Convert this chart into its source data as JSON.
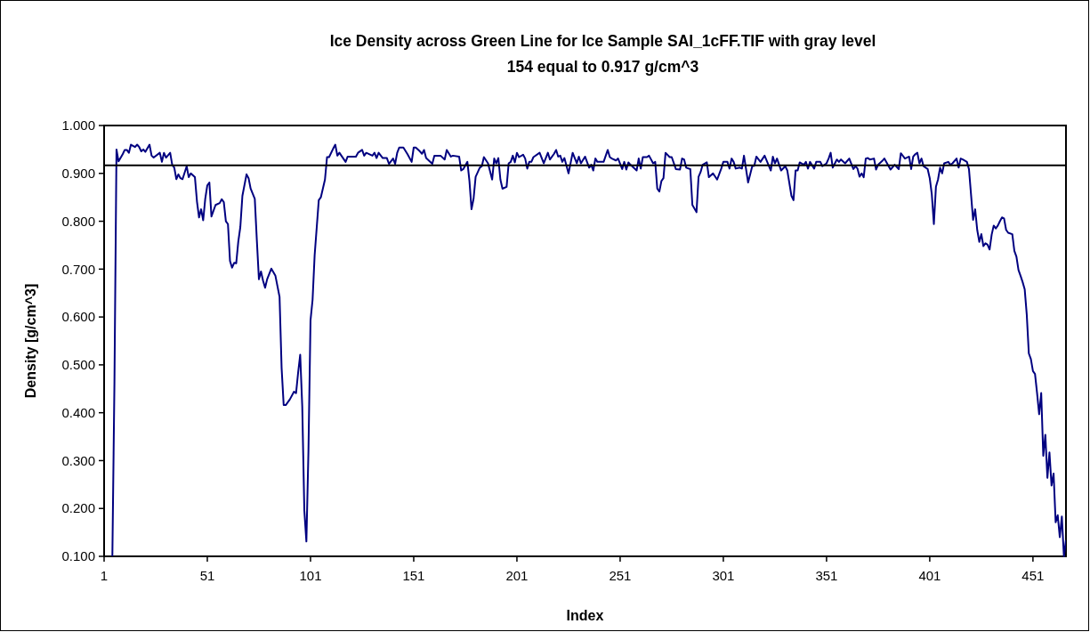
{
  "chart_data": {
    "type": "line",
    "title": "Ice Density across Green Line for Ice Sample SAI_1cFF.TIF with gray level\n154 equal to 0.917 g/cm^3",
    "xlabel": "Index",
    "ylabel": "Density [g/cm^3]",
    "xlim": [
      1,
      467
    ],
    "xticks": [
      1,
      51,
      101,
      151,
      201,
      251,
      301,
      351,
      401,
      451
    ],
    "ylim": [
      0.1,
      1.0
    ],
    "yticks": [
      {
        "value": 0.1,
        "label": "0.100"
      },
      {
        "value": 0.2,
        "label": "0.200"
      },
      {
        "value": 0.3,
        "label": "0.300"
      },
      {
        "value": 0.4,
        "label": "0.400"
      },
      {
        "value": 0.5,
        "label": "0.500"
      },
      {
        "value": 0.6,
        "label": "0.600"
      },
      {
        "value": 0.7,
        "label": "0.700"
      },
      {
        "value": 0.8,
        "label": "0.800"
      },
      {
        "value": 0.9,
        "label": "0.900"
      },
      {
        "value": 1.0,
        "label": "1.000"
      }
    ],
    "grid": false,
    "marker": "none",
    "line_style": "solid",
    "ref_lines": [
      {
        "axis": "y",
        "value": 0.917,
        "color": "#000000"
      }
    ],
    "series": [
      {
        "color": "#000080",
        "x": [
          5,
          6,
          7,
          8,
          10,
          11,
          12,
          13,
          14,
          16,
          17,
          18,
          19,
          20,
          21,
          23,
          24,
          25,
          28,
          29,
          30,
          31,
          33,
          34,
          35,
          36,
          37,
          38,
          39,
          41,
          42,
          43,
          45,
          46,
          47,
          48,
          49,
          50,
          51,
          52,
          53,
          55,
          57,
          58,
          59,
          60,
          61,
          62,
          63,
          64,
          65,
          66,
          67,
          68,
          70,
          71,
          72,
          74,
          75,
          76,
          77,
          78,
          79,
          80,
          82,
          84,
          86,
          87,
          88,
          89,
          91,
          93,
          94,
          95,
          96,
          97,
          98,
          99,
          100,
          101,
          102,
          103,
          105,
          106,
          108,
          109,
          110,
          112,
          113,
          114,
          115,
          118,
          119,
          123,
          124,
          126,
          127,
          128,
          131,
          132,
          133,
          134,
          136,
          138,
          139,
          141,
          142,
          143,
          144,
          146,
          148,
          150,
          151,
          152,
          154,
          155,
          156,
          157,
          160,
          161,
          164,
          166,
          167,
          169,
          170,
          173,
          174,
          175,
          177,
          178,
          179,
          180,
          181,
          183,
          184,
          185,
          187,
          189,
          190,
          191,
          192,
          193,
          194,
          196,
          197,
          198,
          199,
          200,
          201,
          202,
          204,
          205,
          206,
          207,
          208,
          209,
          212,
          214,
          216,
          217,
          219,
          220,
          221,
          222,
          223,
          224,
          226,
          228,
          230,
          231,
          232,
          234,
          236,
          237,
          238,
          239,
          240,
          243,
          245,
          246,
          247,
          249,
          250,
          252,
          253,
          254,
          255,
          256,
          259,
          260,
          261,
          262,
          264,
          265,
          267,
          268,
          269,
          270,
          271,
          272,
          273,
          275,
          276,
          278,
          280,
          281,
          282,
          283,
          285,
          286,
          288,
          289,
          290,
          291,
          293,
          294,
          296,
          298,
          300,
          301,
          303,
          304,
          305,
          306,
          307,
          309,
          310,
          311,
          313,
          315,
          316,
          317,
          319,
          321,
          324,
          325,
          326,
          327,
          329,
          331,
          332,
          334,
          335,
          336,
          337,
          338,
          340,
          341,
          342,
          343,
          345,
          346,
          348,
          349,
          351,
          352,
          353,
          354,
          356,
          357,
          358,
          360,
          362,
          364,
          365,
          366,
          367,
          368,
          369,
          370,
          371,
          372,
          374,
          375,
          376,
          378,
          379,
          382,
          384,
          386,
          387,
          389,
          391,
          392,
          393,
          394,
          395,
          396,
          397,
          398,
          400,
          401,
          402,
          403,
          404,
          405,
          406,
          407,
          408,
          410,
          411,
          412,
          414,
          415,
          416,
          417,
          419,
          420,
          421,
          422,
          423,
          424,
          425,
          426,
          427,
          428,
          429,
          430,
          431,
          432,
          433,
          434,
          435,
          436,
          437,
          438,
          439,
          441,
          442,
          443,
          444,
          445,
          446,
          447,
          448,
          449,
          450,
          451,
          452,
          453,
          454,
          455,
          456,
          457,
          458,
          459,
          460,
          461,
          462,
          463,
          464,
          465,
          466,
          467
        ],
        "values": [
          0.1,
          0.46,
          0.95,
          0.925,
          0.94,
          0.949,
          0.949,
          0.943,
          0.96,
          0.955,
          0.96,
          0.955,
          0.946,
          0.95,
          0.945,
          0.96,
          0.937,
          0.933,
          0.943,
          0.924,
          0.943,
          0.933,
          0.943,
          0.918,
          0.912,
          0.888,
          0.898,
          0.89,
          0.888,
          0.915,
          0.892,
          0.9,
          0.892,
          0.841,
          0.808,
          0.825,
          0.802,
          0.847,
          0.875,
          0.881,
          0.81,
          0.834,
          0.838,
          0.846,
          0.84,
          0.8,
          0.794,
          0.717,
          0.703,
          0.713,
          0.712,
          0.757,
          0.788,
          0.853,
          0.898,
          0.89,
          0.868,
          0.847,
          0.76,
          0.679,
          0.695,
          0.676,
          0.661,
          0.679,
          0.701,
          0.686,
          0.642,
          0.493,
          0.416,
          0.416,
          0.428,
          0.444,
          0.441,
          0.484,
          0.521,
          0.413,
          0.196,
          0.131,
          0.32,
          0.593,
          0.636,
          0.729,
          0.844,
          0.85,
          0.887,
          0.934,
          0.934,
          0.952,
          0.96,
          0.937,
          0.943,
          0.924,
          0.935,
          0.935,
          0.943,
          0.949,
          0.937,
          0.943,
          0.937,
          0.943,
          0.932,
          0.943,
          0.932,
          0.932,
          0.92,
          0.931,
          0.92,
          0.943,
          0.954,
          0.954,
          0.94,
          0.924,
          0.954,
          0.954,
          0.946,
          0.941,
          0.949,
          0.932,
          0.92,
          0.937,
          0.937,
          0.929,
          0.949,
          0.935,
          0.937,
          0.935,
          0.906,
          0.909,
          0.924,
          0.884,
          0.825,
          0.847,
          0.893,
          0.912,
          0.915,
          0.934,
          0.921,
          0.887,
          0.931,
          0.921,
          0.932,
          0.887,
          0.868,
          0.872,
          0.921,
          0.924,
          0.937,
          0.923,
          0.943,
          0.934,
          0.939,
          0.931,
          0.91,
          0.924,
          0.924,
          0.934,
          0.943,
          0.921,
          0.943,
          0.929,
          0.941,
          0.949,
          0.935,
          0.937,
          0.924,
          0.932,
          0.9,
          0.943,
          0.921,
          0.935,
          0.921,
          0.935,
          0.912,
          0.918,
          0.906,
          0.931,
          0.924,
          0.924,
          0.949,
          0.934,
          0.931,
          0.927,
          0.931,
          0.909,
          0.924,
          0.908,
          0.923,
          0.918,
          0.906,
          0.931,
          0.91,
          0.934,
          0.934,
          0.937,
          0.921,
          0.924,
          0.868,
          0.862,
          0.884,
          0.89,
          0.943,
          0.934,
          0.934,
          0.909,
          0.908,
          0.931,
          0.929,
          0.912,
          0.909,
          0.834,
          0.819,
          0.893,
          0.903,
          0.918,
          0.923,
          0.892,
          0.9,
          0.887,
          0.91,
          0.924,
          0.924,
          0.91,
          0.931,
          0.924,
          0.91,
          0.912,
          0.91,
          0.937,
          0.881,
          0.915,
          0.916,
          0.935,
          0.924,
          0.937,
          0.906,
          0.935,
          0.921,
          0.931,
          0.906,
          0.915,
          0.906,
          0.853,
          0.844,
          0.906,
          0.906,
          0.923,
          0.918,
          0.924,
          0.91,
          0.924,
          0.91,
          0.924,
          0.924,
          0.915,
          0.921,
          0.931,
          0.943,
          0.912,
          0.929,
          0.924,
          0.929,
          0.921,
          0.931,
          0.909,
          0.915,
          0.91,
          0.893,
          0.9,
          0.892,
          0.931,
          0.932,
          0.929,
          0.931,
          0.908,
          0.918,
          0.926,
          0.931,
          0.908,
          0.918,
          0.909,
          0.942,
          0.931,
          0.935,
          0.909,
          0.935,
          0.94,
          0.943,
          0.921,
          0.931,
          0.915,
          0.909,
          0.89,
          0.856,
          0.794,
          0.872,
          0.887,
          0.912,
          0.9,
          0.921,
          0.924,
          0.918,
          0.921,
          0.931,
          0.912,
          0.931,
          0.929,
          0.924,
          0.909,
          0.856,
          0.803,
          0.825,
          0.782,
          0.757,
          0.773,
          0.748,
          0.754,
          0.751,
          0.741,
          0.772,
          0.791,
          0.785,
          0.791,
          0.8,
          0.808,
          0.806,
          0.782,
          0.776,
          0.773,
          0.738,
          0.726,
          0.698,
          0.686,
          0.673,
          0.658,
          0.605,
          0.524,
          0.512,
          0.487,
          0.481,
          0.441,
          0.397,
          0.441,
          0.31,
          0.354,
          0.264,
          0.317,
          0.248,
          0.273,
          0.171,
          0.186,
          0.14,
          0.183,
          0.1,
          0.134
        ]
      }
    ]
  }
}
